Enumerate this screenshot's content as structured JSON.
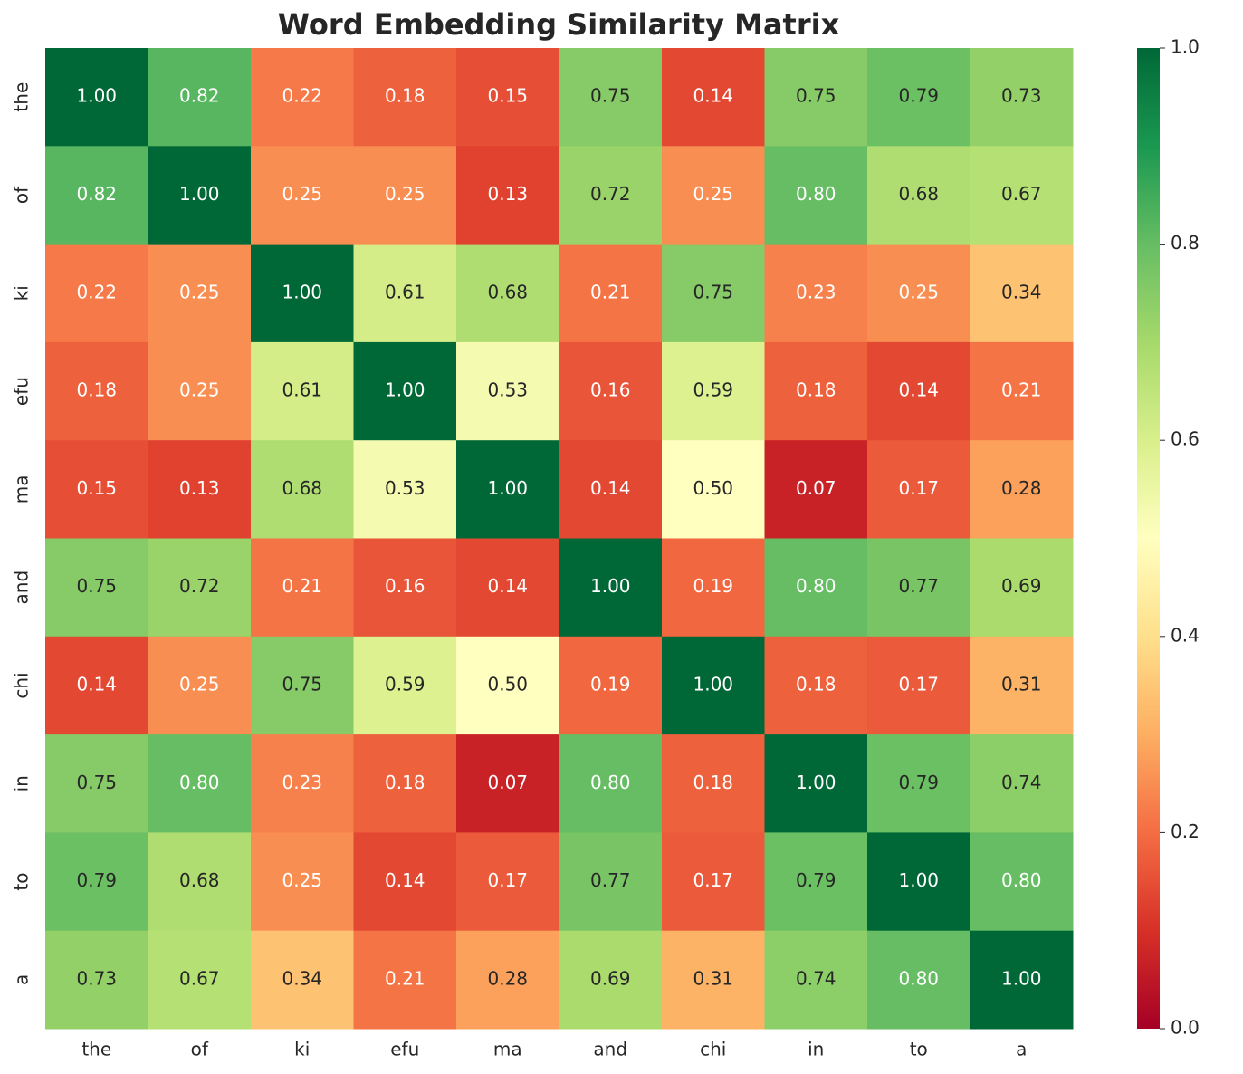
{
  "chart_data": {
    "type": "heatmap",
    "title": "Word Embedding Similarity Matrix",
    "x_categories": [
      "the",
      "of",
      "ki",
      "efu",
      "ma",
      "and",
      "chi",
      "in",
      "to",
      "a"
    ],
    "y_categories": [
      "the",
      "of",
      "ki",
      "efu",
      "ma",
      "and",
      "chi",
      "in",
      "to",
      "a"
    ],
    "values": [
      [
        1.0,
        0.82,
        0.22,
        0.18,
        0.15,
        0.75,
        0.14,
        0.75,
        0.79,
        0.73
      ],
      [
        0.82,
        1.0,
        0.25,
        0.25,
        0.13,
        0.72,
        0.25,
        0.8,
        0.68,
        0.67
      ],
      [
        0.22,
        0.25,
        1.0,
        0.61,
        0.68,
        0.21,
        0.75,
        0.23,
        0.25,
        0.34
      ],
      [
        0.18,
        0.25,
        0.61,
        1.0,
        0.53,
        0.16,
        0.59,
        0.18,
        0.14,
        0.21
      ],
      [
        0.15,
        0.13,
        0.68,
        0.53,
        1.0,
        0.14,
        0.5,
        0.07,
        0.17,
        0.28
      ],
      [
        0.75,
        0.72,
        0.21,
        0.16,
        0.14,
        1.0,
        0.19,
        0.8,
        0.77,
        0.69
      ],
      [
        0.14,
        0.25,
        0.75,
        0.59,
        0.5,
        0.19,
        1.0,
        0.18,
        0.17,
        0.31
      ],
      [
        0.75,
        0.8,
        0.23,
        0.18,
        0.07,
        0.8,
        0.18,
        1.0,
        0.79,
        0.74
      ],
      [
        0.79,
        0.68,
        0.25,
        0.14,
        0.17,
        0.77,
        0.17,
        0.79,
        1.0,
        0.8
      ],
      [
        0.73,
        0.67,
        0.34,
        0.21,
        0.28,
        0.69,
        0.31,
        0.74,
        0.8,
        1.0
      ]
    ],
    "value_labels": [
      [
        "1.00",
        "0.82",
        "0.22",
        "0.18",
        "0.15",
        "0.75",
        "0.14",
        "0.75",
        "0.79",
        "0.73"
      ],
      [
        "0.82",
        "1.00",
        "0.25",
        "0.25",
        "0.13",
        "0.72",
        "0.25",
        "0.80",
        "0.68",
        "0.67"
      ],
      [
        "0.22",
        "0.25",
        "1.00",
        "0.61",
        "0.68",
        "0.21",
        "0.75",
        "0.23",
        "0.25",
        "0.34"
      ],
      [
        "0.18",
        "0.25",
        "0.61",
        "1.00",
        "0.53",
        "0.16",
        "0.59",
        "0.18",
        "0.14",
        "0.21"
      ],
      [
        "0.15",
        "0.13",
        "0.68",
        "0.53",
        "1.00",
        "0.14",
        "0.50",
        "0.07",
        "0.17",
        "0.28"
      ],
      [
        "0.75",
        "0.72",
        "0.21",
        "0.16",
        "0.14",
        "1.00",
        "0.19",
        "0.80",
        "0.77",
        "0.69"
      ],
      [
        "0.14",
        "0.25",
        "0.75",
        "0.59",
        "0.50",
        "0.19",
        "1.00",
        "0.18",
        "0.17",
        "0.31"
      ],
      [
        "0.75",
        "0.80",
        "0.23",
        "0.18",
        "0.07",
        "0.80",
        "0.18",
        "1.00",
        "0.79",
        "0.74"
      ],
      [
        "0.79",
        "0.68",
        "0.25",
        "0.14",
        "0.17",
        "0.77",
        "0.17",
        "0.79",
        "1.00",
        "0.80"
      ],
      [
        "0.73",
        "0.67",
        "0.34",
        "0.21",
        "0.28",
        "0.69",
        "0.31",
        "0.74",
        "0.80",
        "1.00"
      ]
    ],
    "colormap": "RdYlGn",
    "clim": [
      0,
      1
    ],
    "cticks": [
      {
        "value": 0,
        "label": "0.0"
      },
      0.2,
      0.4,
      0.6,
      0.8,
      {
        "value": 1,
        "label": "1.0"
      }
    ]
  }
}
